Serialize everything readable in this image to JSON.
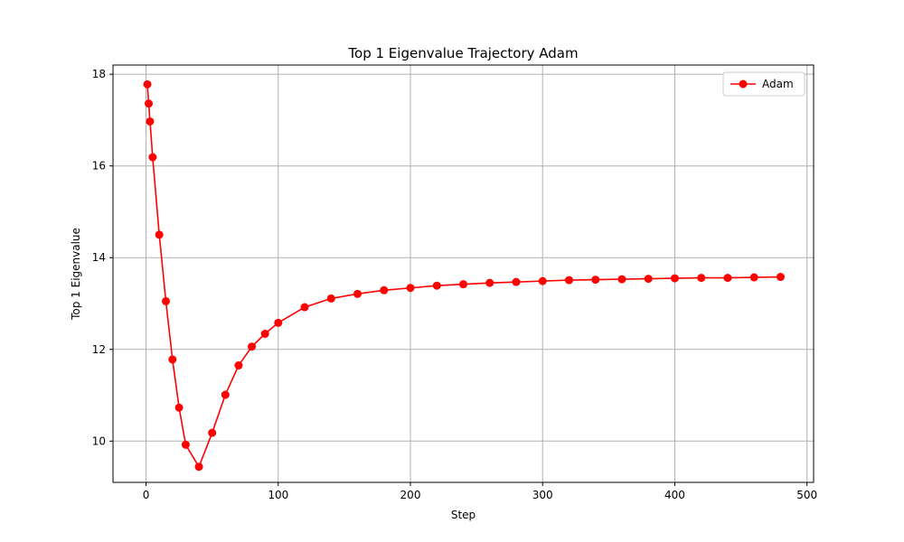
{
  "chart_data": {
    "type": "line",
    "title": "Top 1 Eigenvalue Trajectory Adam",
    "xlabel": "Step",
    "ylabel": "Top 1 Eigenvalue",
    "xlim": [
      -25,
      505
    ],
    "ylim": [
      9.1,
      18.2
    ],
    "xticks": [
      0,
      100,
      200,
      300,
      400,
      500
    ],
    "yticks": [
      10,
      12,
      14,
      16,
      18
    ],
    "grid": true,
    "legend_position": "top-right",
    "series": [
      {
        "name": "Adam",
        "color": "#ff0000",
        "marker": "circle",
        "x": [
          1,
          2,
          3,
          5,
          10,
          15,
          20,
          25,
          30,
          40,
          50,
          60,
          70,
          80,
          90,
          100,
          120,
          140,
          160,
          180,
          200,
          220,
          240,
          260,
          280,
          300,
          320,
          340,
          360,
          380,
          400,
          420,
          440,
          460,
          480
        ],
        "y": [
          17.78,
          17.36,
          16.97,
          16.19,
          14.5,
          13.05,
          11.78,
          10.73,
          9.92,
          9.44,
          10.18,
          11.01,
          11.65,
          12.06,
          12.34,
          12.58,
          12.92,
          13.11,
          13.21,
          13.29,
          13.34,
          13.39,
          13.42,
          13.45,
          13.47,
          13.49,
          13.51,
          13.52,
          13.53,
          13.54,
          13.55,
          13.56,
          13.56,
          13.57,
          13.58
        ]
      }
    ]
  }
}
